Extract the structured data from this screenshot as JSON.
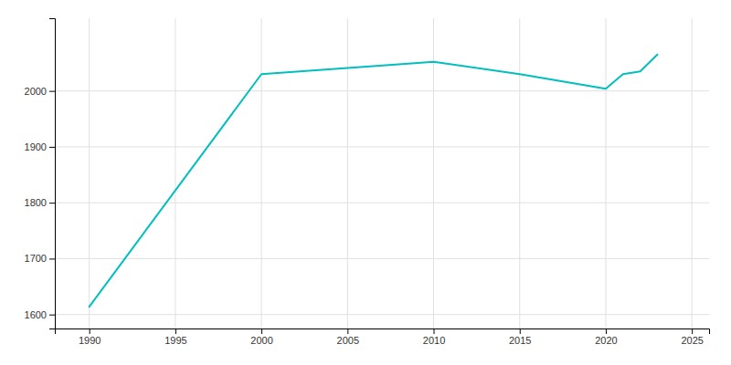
{
  "chart_data": {
    "type": "line",
    "x": [
      1990,
      2000,
      2010,
      2015,
      2020,
      2021,
      2022,
      2023
    ],
    "values": [
      1614,
      2030,
      2052,
      2030,
      2004,
      2030,
      2035,
      2065
    ],
    "color": "#00BFBF",
    "xlim": [
      1988,
      2026
    ],
    "ylim": [
      1575,
      2130
    ],
    "xticks": [
      1990,
      1995,
      2000,
      2005,
      2010,
      2015,
      2020,
      2025
    ],
    "yticks": [
      1600,
      1700,
      1800,
      1900,
      2000
    ],
    "grid": true
  }
}
